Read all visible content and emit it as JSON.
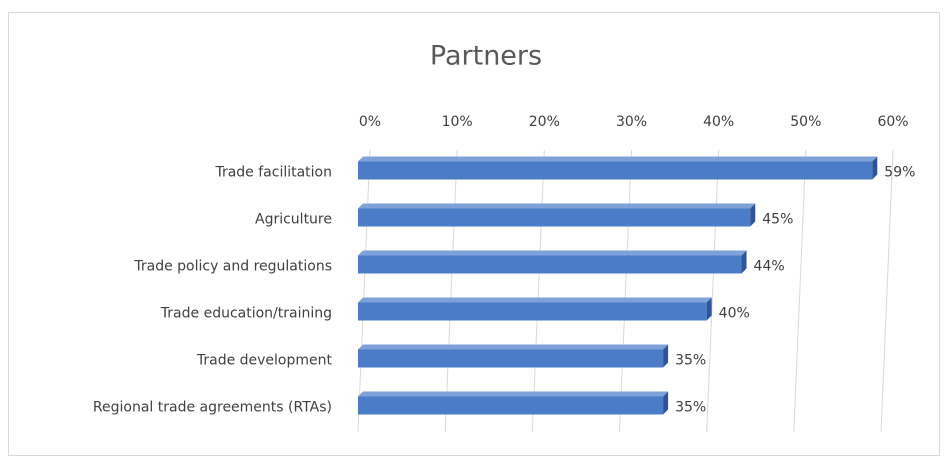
{
  "chart_data": {
    "type": "bar",
    "orientation": "horizontal",
    "title": "Partners",
    "categories": [
      "Trade facilitation",
      "Agriculture",
      "Trade policy and regulations",
      "Trade education/training",
      "Trade development",
      "Regional trade agreements (RTAs)"
    ],
    "values": [
      59,
      45,
      44,
      40,
      35,
      35
    ],
    "value_labels": [
      "59%",
      "45%",
      "44%",
      "40%",
      "35%",
      "35%"
    ],
    "color": "#4a7cc7",
    "xlim": [
      0,
      60
    ],
    "xticks": [
      {
        "value": 0,
        "label": "0%"
      },
      {
        "value": 10,
        "label": "10%"
      },
      {
        "value": 20,
        "label": "20%"
      },
      {
        "value": 30,
        "label": "30%"
      },
      {
        "value": 40,
        "label": "40%"
      },
      {
        "value": 50,
        "label": "50%"
      },
      {
        "value": 60,
        "label": "60%"
      }
    ],
    "grid": true
  }
}
